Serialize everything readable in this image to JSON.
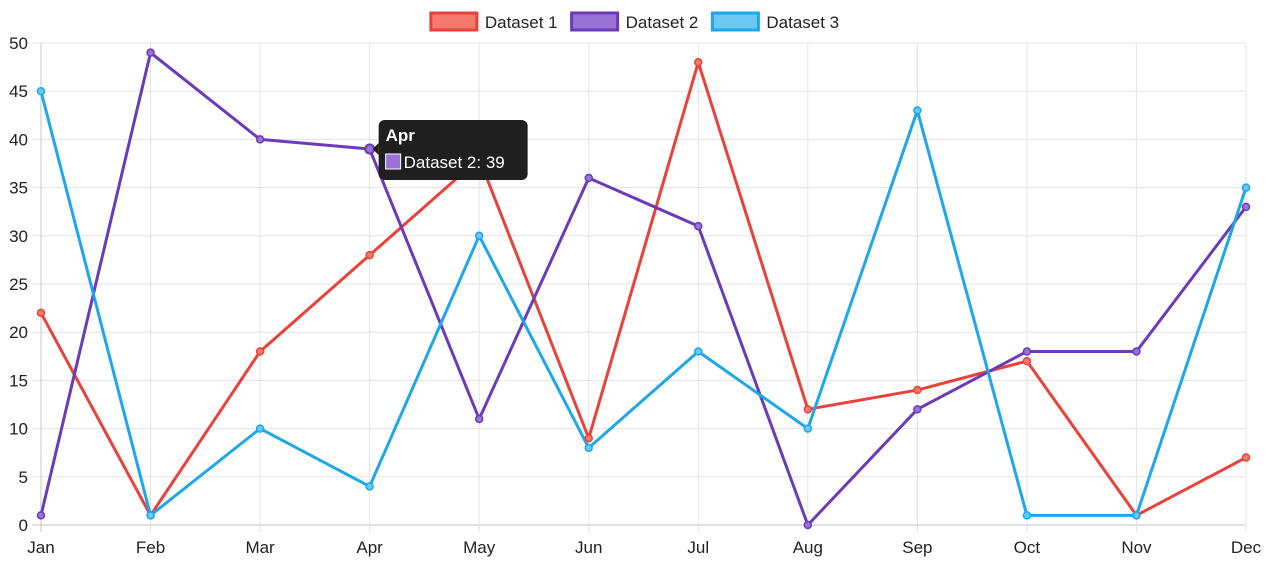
{
  "chart_data": {
    "type": "line",
    "categories": [
      "Jan",
      "Feb",
      "Mar",
      "Apr",
      "May",
      "Jun",
      "Jul",
      "Aug",
      "Sep",
      "Oct",
      "Nov",
      "Dec"
    ],
    "series": [
      {
        "name": "Dataset 1",
        "values": [
          22,
          1,
          18,
          28,
          38,
          9,
          48,
          12,
          14,
          17,
          1,
          7
        ],
        "color": "#e8423a",
        "fill": "#f47a6f"
      },
      {
        "name": "Dataset 2",
        "values": [
          1,
          49,
          40,
          39,
          11,
          36,
          31,
          0,
          12,
          18,
          18,
          33
        ],
        "color": "#6b3bb8",
        "fill": "#9a72d6"
      },
      {
        "name": "Dataset 3",
        "values": [
          45,
          1,
          10,
          4,
          30,
          8,
          18,
          10,
          43,
          1,
          1,
          35
        ],
        "color": "#1ea7ea",
        "fill": "#6cc7f3"
      }
    ],
    "ylim": [
      0,
      50
    ],
    "yticks": [
      0,
      5,
      10,
      15,
      20,
      25,
      30,
      35,
      40,
      45,
      50
    ],
    "grid": true,
    "legend_position": "top-center",
    "tooltip": {
      "title": "Apr",
      "series_index": 1,
      "category_index": 3,
      "text": "Dataset 2: 39"
    }
  }
}
